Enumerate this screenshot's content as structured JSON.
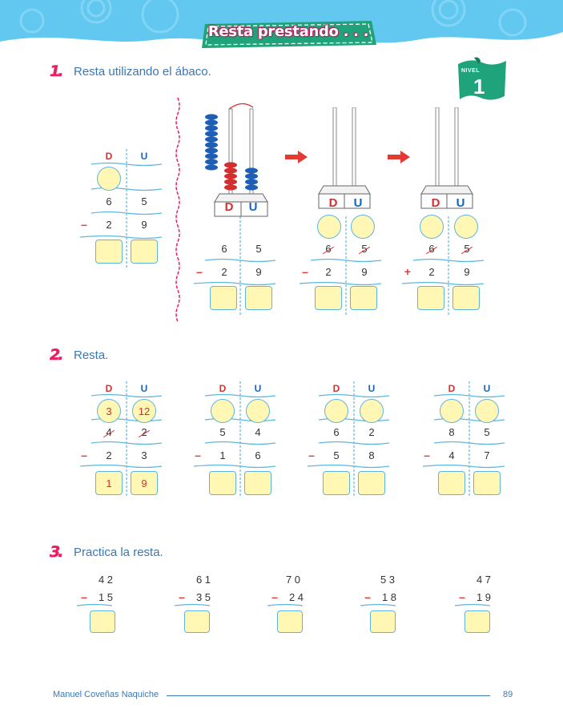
{
  "header": {
    "title": "Resta prestando . . ."
  },
  "nivel": {
    "label": "NIVEL",
    "number": "1"
  },
  "sections": [
    {
      "number": "1.",
      "instruction": "Resta utilizando el ábaco."
    },
    {
      "number": "2.",
      "instruction": "Resta."
    },
    {
      "number": "3.",
      "instruction": "Practica la resta."
    }
  ],
  "labels": {
    "d": "D",
    "u": "U",
    "minus": "–",
    "plus": "+"
  },
  "ex1": {
    "left": {
      "top": [
        "6",
        "5"
      ],
      "bottom": [
        "2",
        "9"
      ]
    },
    "abacus1": {
      "top": [
        "6",
        "5"
      ],
      "bottom": [
        "2",
        "9"
      ]
    },
    "abacus2": {
      "top": [
        "6",
        "5"
      ],
      "bottom": [
        "2",
        "9"
      ]
    },
    "abacus3": {
      "top": [
        "6",
        "5"
      ],
      "bottom": [
        "2",
        "9"
      ]
    }
  },
  "ex2": [
    {
      "circles": [
        "3",
        "12"
      ],
      "top": [
        "4",
        "2"
      ],
      "bottom": [
        "2",
        "3"
      ],
      "result": [
        "1",
        "9"
      ]
    },
    {
      "circles": [
        "",
        ""
      ],
      "top": [
        "5",
        "4"
      ],
      "bottom": [
        "1",
        "6"
      ],
      "result": [
        "",
        ""
      ]
    },
    {
      "circles": [
        "",
        ""
      ],
      "top": [
        "6",
        "2"
      ],
      "bottom": [
        "5",
        "8"
      ],
      "result": [
        "",
        ""
      ]
    },
    {
      "circles": [
        "",
        ""
      ],
      "top": [
        "8",
        "5"
      ],
      "bottom": [
        "4",
        "7"
      ],
      "result": [
        "",
        ""
      ]
    }
  ],
  "ex3": [
    {
      "top": "4 2",
      "bottom": "1 5"
    },
    {
      "top": "6 1",
      "bottom": "3 5"
    },
    {
      "top": "7 0",
      "bottom": "2 4"
    },
    {
      "top": "5 3",
      "bottom": "1 8"
    },
    {
      "top": "4 7",
      "bottom": "1 9"
    }
  ],
  "footer": {
    "author": "Manuel Coveñas Naquiche",
    "page": "89"
  },
  "colors": {
    "sky": "#62c8f0",
    "accent": "#e91e63",
    "blue_text": "#3a78b5",
    "answer_fill": "#fff7b3",
    "bead_red": "#d32f2f",
    "bead_blue": "#1e5fb5",
    "nivel_green": "#1fa37a"
  }
}
